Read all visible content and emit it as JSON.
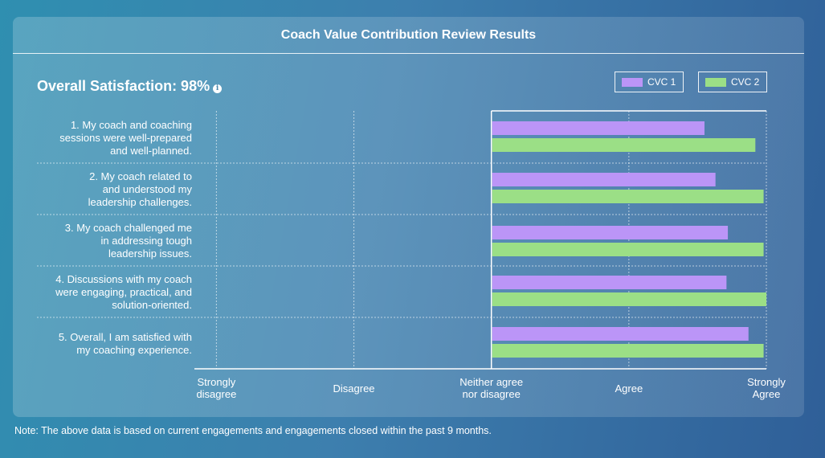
{
  "card": {
    "title": "Coach Value Contribution Review Results",
    "overall_label": "Overall Satisfaction: 98%",
    "info_glyph": "i"
  },
  "legend": [
    {
      "label": "CVC 1",
      "color": "#bb95f7"
    },
    {
      "label": "CVC 2",
      "color": "#9bdf86"
    }
  ],
  "note": "Note: The above data is based on current engagements and engagements closed within the past 9 months.",
  "chart_data": {
    "type": "bar",
    "orientation": "horizontal",
    "categories": [
      "1. My coach and coaching\nsessions were well-prepared\nand well-planned.",
      "2. My coach related to\nand understood my\nleadership challenges.",
      "3. My coach challenged me\nin addressing tough\nleadership issues.",
      "4. Discussions with my coach\nwere engaging, practical, and\nsolution-oriented.",
      "5. Overall, I am satisfied with\nmy coaching experience."
    ],
    "series": [
      {
        "name": "CVC 1",
        "color": "#bb95f7",
        "values": [
          4.55,
          4.63,
          4.72,
          4.71,
          4.87
        ]
      },
      {
        "name": "CVC 2",
        "color": "#9bdf86",
        "values": [
          4.92,
          4.98,
          4.98,
          5.0,
          4.98
        ]
      }
    ],
    "x_ticks": [
      {
        "value": 1,
        "label": "Strongly\ndisagree"
      },
      {
        "value": 2,
        "label": "Disagree"
      },
      {
        "value": 3,
        "label": "Neither agree\nnor disagree"
      },
      {
        "value": 4,
        "label": "Agree"
      },
      {
        "value": 5,
        "label": "Strongly\nAgree"
      }
    ],
    "xlim": [
      0.84,
      5
    ],
    "baseline": 3,
    "grid": true,
    "legend_position": "top-right"
  }
}
